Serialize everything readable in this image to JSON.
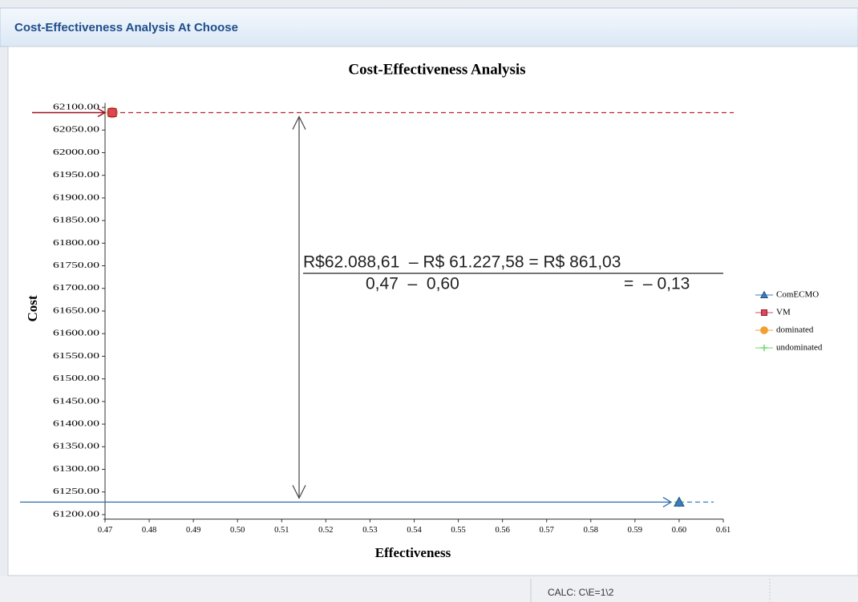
{
  "window": {
    "title": "Cost-Effectiveness Analysis At Choose"
  },
  "status_bar": {
    "text": "CALC: C\\E=1\\2"
  },
  "chart_data": {
    "type": "scatter",
    "title": "Cost-Effectiveness Analysis",
    "x_label": "Effectiveness",
    "y_label": "Cost",
    "series": [
      {
        "name": "ComECMO",
        "color": "#3a7dc0",
        "marker": "triangle",
        "x": [
          0.6
        ],
        "values": [
          61227.58
        ]
      },
      {
        "name": "VM",
        "color": "#e0455a",
        "marker": "square",
        "x": [
          0.47
        ],
        "values": [
          62088.61
        ]
      },
      {
        "name": "dominated",
        "color": "#f0a030",
        "marker": "circle",
        "x": [
          0.47
        ],
        "values": [
          62088.61
        ]
      },
      {
        "name": "undominated",
        "color": "#66dd66",
        "marker": "plus",
        "x": [
          0.6
        ],
        "values": [
          61227.58
        ]
      }
    ],
    "xlim": [
      0.47,
      0.61
    ],
    "ylim": [
      61190,
      62110
    ],
    "xticks": [
      {
        "value": 0.47,
        "label": "0.47"
      },
      {
        "value": 0.48,
        "label": "0.48"
      },
      {
        "value": 0.49,
        "label": "0.49"
      },
      {
        "value": 0.5,
        "label": "0.50"
      },
      {
        "value": 0.51,
        "label": "0.51"
      },
      {
        "value": 0.52,
        "label": "0.52"
      },
      {
        "value": 0.53,
        "label": "0.53"
      },
      {
        "value": 0.54,
        "label": "0.54"
      },
      {
        "value": 0.55,
        "label": "0.55"
      },
      {
        "value": 0.56,
        "label": "0.56"
      },
      {
        "value": 0.57,
        "label": "0.57"
      },
      {
        "value": 0.58,
        "label": "0.58"
      },
      {
        "value": 0.59,
        "label": "0.59"
      },
      {
        "value": 0.6,
        "label": "0.60"
      },
      {
        "value": 0.61,
        "label": "0.61"
      }
    ],
    "yticks": [
      {
        "value": 61200,
        "label": "61200.00"
      },
      {
        "value": 61250,
        "label": "61250.00"
      },
      {
        "value": 61300,
        "label": "61300.00"
      },
      {
        "value": 61350,
        "label": "61350.00"
      },
      {
        "value": 61400,
        "label": "61400.00"
      },
      {
        "value": 61450,
        "label": "61450.00"
      },
      {
        "value": 61500,
        "label": "61500.00"
      },
      {
        "value": 61550,
        "label": "61550.00"
      },
      {
        "value": 61600,
        "label": "61600.00"
      },
      {
        "value": 61650,
        "label": "61650.00"
      },
      {
        "value": 61700,
        "label": "61700.00"
      },
      {
        "value": 61750,
        "label": "61750.00"
      },
      {
        "value": 61800,
        "label": "61800.00"
      },
      {
        "value": 61850,
        "label": "61850.00"
      },
      {
        "value": 61900,
        "label": "61900.00"
      },
      {
        "value": 61950,
        "label": "61950.00"
      },
      {
        "value": 62000,
        "label": "62000.00"
      },
      {
        "value": 62050,
        "label": "62050.00"
      },
      {
        "value": 62100,
        "label": "62100.00"
      }
    ],
    "annotations": [
      "R$62.088,61  – R$ 61.227,58 = R$ 861,03",
      "0,47  –  0,60",
      "=  – 0,13"
    ],
    "legend": "right"
  }
}
